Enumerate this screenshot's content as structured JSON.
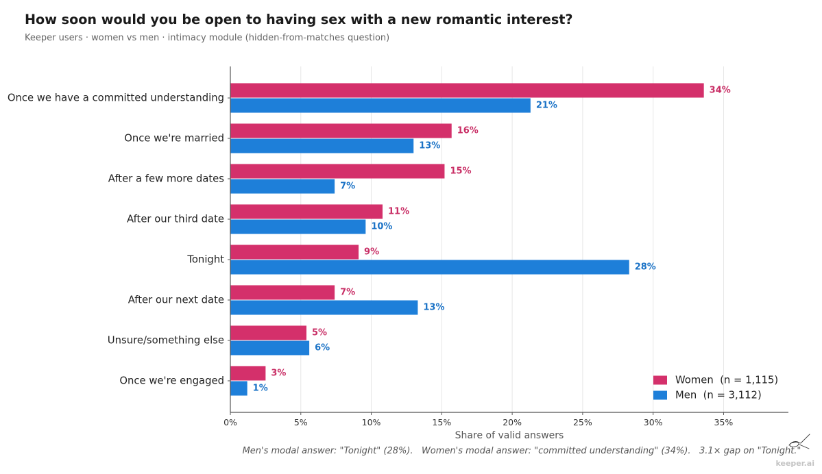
{
  "chart_data": {
    "type": "bar",
    "orientation": "horizontal",
    "title": "How soon would you be open to having sex with a new romantic interest?",
    "subtitle": "Keeper users · women vs men · intimacy module (hidden-from-matches question)",
    "categories": [
      "Once we have a committed understanding",
      "Once we're married",
      "After a few more dates",
      "After our third date",
      "Tonight",
      "After our next date",
      "Unsure/something else",
      "Once we're engaged"
    ],
    "series": [
      {
        "name": "Women  (n = 1,115)",
        "color": "#d4306b",
        "label_color": "#c92f66",
        "values": [
          33.6,
          15.7,
          15.2,
          10.8,
          9.1,
          7.4,
          5.4,
          2.5
        ],
        "labels": [
          "34%",
          "16%",
          "15%",
          "11%",
          "9%",
          "7%",
          "5%",
          "3%"
        ]
      },
      {
        "name": "Men  (n = 3,112)",
        "color": "#1e7fd9",
        "label_color": "#1a72c6",
        "values": [
          21.3,
          13.0,
          7.4,
          9.6,
          28.3,
          13.3,
          5.6,
          1.2
        ],
        "labels": [
          "21%",
          "13%",
          "7%",
          "10%",
          "28%",
          "13%",
          "6%",
          "1%"
        ]
      }
    ],
    "xlabel": "Share of valid answers",
    "xlim": [
      0,
      39.6
    ],
    "xticks": [
      0,
      5,
      10,
      15,
      20,
      25,
      30,
      35
    ],
    "xtick_labels": [
      "0%",
      "5%",
      "10%",
      "15%",
      "20%",
      "25%",
      "30%",
      "35%"
    ],
    "grid": true,
    "legend": "bottom-right",
    "annotation": "Men's modal answer: \"Tonight\" (28%).   Women's modal answer: \"committed understanding\" (34%).   3.1× gap on \"Tonight.\""
  },
  "watermark": "keeper.ai"
}
